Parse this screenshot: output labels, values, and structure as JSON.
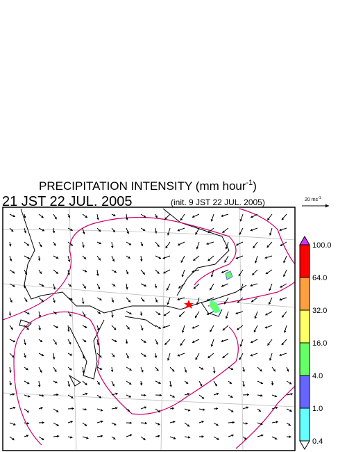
{
  "header": {
    "title": "PRECIPITATION INTENSITY (mm hour",
    "title_exponent": "-1",
    "title_close": ")",
    "valid_time": "21 JST 22 JUL. 2005",
    "init_time": "(init. 9 JST 22 JUL. 2005)"
  },
  "wind_scale": {
    "label": "20 ms",
    "exponent": "-1"
  },
  "colorbar": {
    "levels": [
      {
        "value": 100,
        "label": "100.0"
      },
      {
        "value": 64,
        "label": "64.0"
      },
      {
        "value": 32,
        "label": "32.0"
      },
      {
        "value": 16,
        "label": "16.0"
      },
      {
        "value": 4,
        "label": "4.0"
      },
      {
        "value": 1,
        "label": "1.0"
      },
      {
        "value": 0.4,
        "label": "0.4"
      }
    ],
    "colors": [
      "#cc33ff",
      "#ff0000",
      "#ffa040",
      "#ffff66",
      "#66ff66",
      "#6666ff",
      "#66ffff",
      "#ffffff"
    ]
  }
}
